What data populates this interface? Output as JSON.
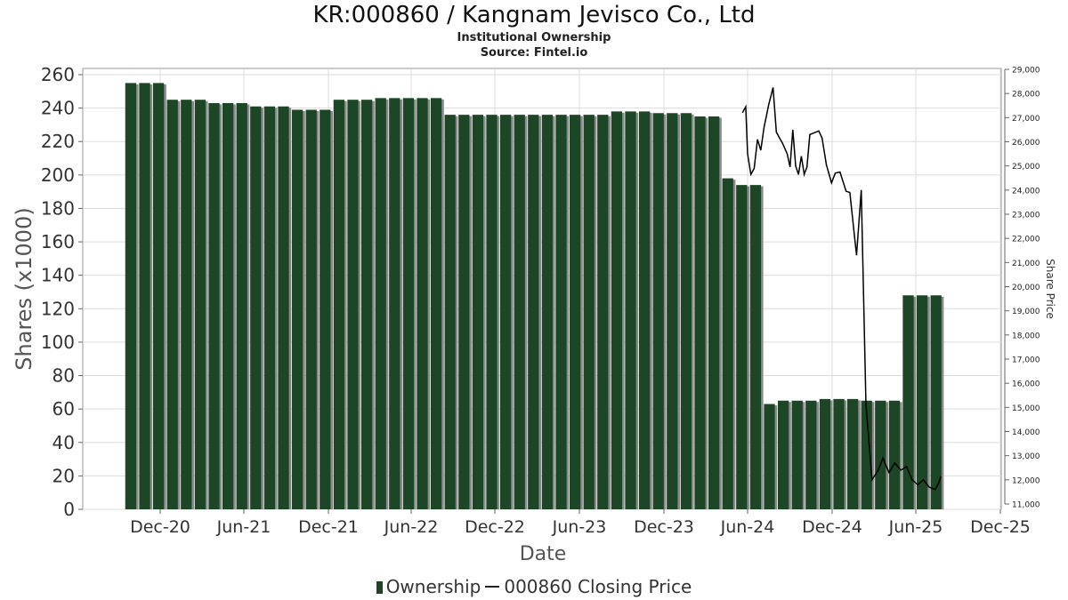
{
  "header": {
    "title": "KR:000860 / Kangnam Jevisco Co., Ltd",
    "subtitle": "Institutional Ownership",
    "source": "Source: Fintel.io"
  },
  "legend": {
    "ownership_label": "Ownership",
    "price_label": "000860 Closing Price"
  },
  "colors": {
    "bar": "#1c4626",
    "bar_shadow": "#8a8a8a",
    "line": "#000000",
    "grid": "#dddddd"
  },
  "chart_data": {
    "type": "bar",
    "title": "KR:000860 / Kangnam Jevisco Co., Ltd",
    "xlabel": "Date",
    "ylabel": "Shares (x1000)",
    "y2label": "Share Price",
    "ylim": [
      0,
      260
    ],
    "y2lim": [
      11000,
      29000
    ],
    "yticks": [
      0,
      20,
      40,
      60,
      80,
      100,
      120,
      140,
      160,
      180,
      200,
      220,
      240,
      260
    ],
    "y2ticks": [
      "11,000",
      "12,000",
      "13,000",
      "14,000",
      "15,000",
      "16,000",
      "17,000",
      "18,000",
      "19,000",
      "20,000",
      "21,000",
      "22,000",
      "23,000",
      "24,000",
      "25,000",
      "26,000",
      "27,000",
      "28,000",
      "29,000"
    ],
    "xticks": [
      "Dec-20",
      "Jun-21",
      "Dec-21",
      "Jun-22",
      "Dec-22",
      "Jun-23",
      "Dec-23",
      "Jun-24",
      "Dec-24",
      "Jun-25",
      "Dec-25"
    ],
    "grid": true,
    "legend_position": "bottom",
    "series": [
      {
        "name": "Ownership",
        "values": [
          255,
          255,
          255,
          245,
          245,
          245,
          243,
          243,
          243,
          241,
          241,
          241,
          239,
          239,
          239,
          245,
          245,
          245,
          246,
          246,
          246,
          246,
          246,
          236,
          236,
          236,
          236,
          236,
          236,
          236,
          236,
          236,
          236,
          236,
          236,
          238,
          238,
          238,
          237,
          237,
          237,
          235,
          235,
          198,
          194,
          194,
          63,
          65,
          65,
          65,
          66,
          66,
          66,
          65,
          65,
          65,
          128,
          128,
          128
        ]
      },
      {
        "name": "000860 Closing Price",
        "axis": "right",
        "points": [
          [
            "2024-07-01",
            27200
          ],
          [
            "2024-07-08",
            27450
          ],
          [
            "2024-07-12",
            25500
          ],
          [
            "2024-07-19",
            24650
          ],
          [
            "2024-07-26",
            24900
          ],
          [
            "2024-08-02",
            26100
          ],
          [
            "2024-08-09",
            25650
          ],
          [
            "2024-08-16",
            26600
          ],
          [
            "2024-08-26",
            27550
          ],
          [
            "2024-09-04",
            28250
          ],
          [
            "2024-09-11",
            26400
          ],
          [
            "2024-09-25",
            25900
          ],
          [
            "2024-10-04",
            25500
          ],
          [
            "2024-10-10",
            24950
          ],
          [
            "2024-10-16",
            26500
          ],
          [
            "2024-10-22",
            25000
          ],
          [
            "2024-10-28",
            24650
          ],
          [
            "2024-11-03",
            25400
          ],
          [
            "2024-11-09",
            24650
          ],
          [
            "2024-11-15",
            24950
          ],
          [
            "2024-11-21",
            26300
          ],
          [
            "2024-12-10",
            26450
          ],
          [
            "2024-12-17",
            26150
          ],
          [
            "2024-12-26",
            25050
          ],
          [
            "2025-01-06",
            24300
          ],
          [
            "2025-01-14",
            24700
          ],
          [
            "2025-01-24",
            24750
          ],
          [
            "2025-02-06",
            23950
          ],
          [
            "2025-02-14",
            23900
          ],
          [
            "2025-02-22",
            22400
          ],
          [
            "2025-02-28",
            21300
          ],
          [
            "2025-03-10",
            24000
          ],
          [
            "2025-03-20",
            15100
          ],
          [
            "2025-04-02",
            12000
          ],
          [
            "2025-04-15",
            12400
          ],
          [
            "2025-04-25",
            12900
          ],
          [
            "2025-05-08",
            12300
          ],
          [
            "2025-05-20",
            12700
          ],
          [
            "2025-06-02",
            12400
          ],
          [
            "2025-06-14",
            12550
          ],
          [
            "2025-06-26",
            12000
          ],
          [
            "2025-07-08",
            11800
          ],
          [
            "2025-07-20",
            12000
          ],
          [
            "2025-08-01",
            11700
          ],
          [
            "2025-08-14",
            11600
          ],
          [
            "2025-08-22",
            11900
          ],
          [
            "2025-08-26",
            12150
          ]
        ]
      }
    ]
  }
}
